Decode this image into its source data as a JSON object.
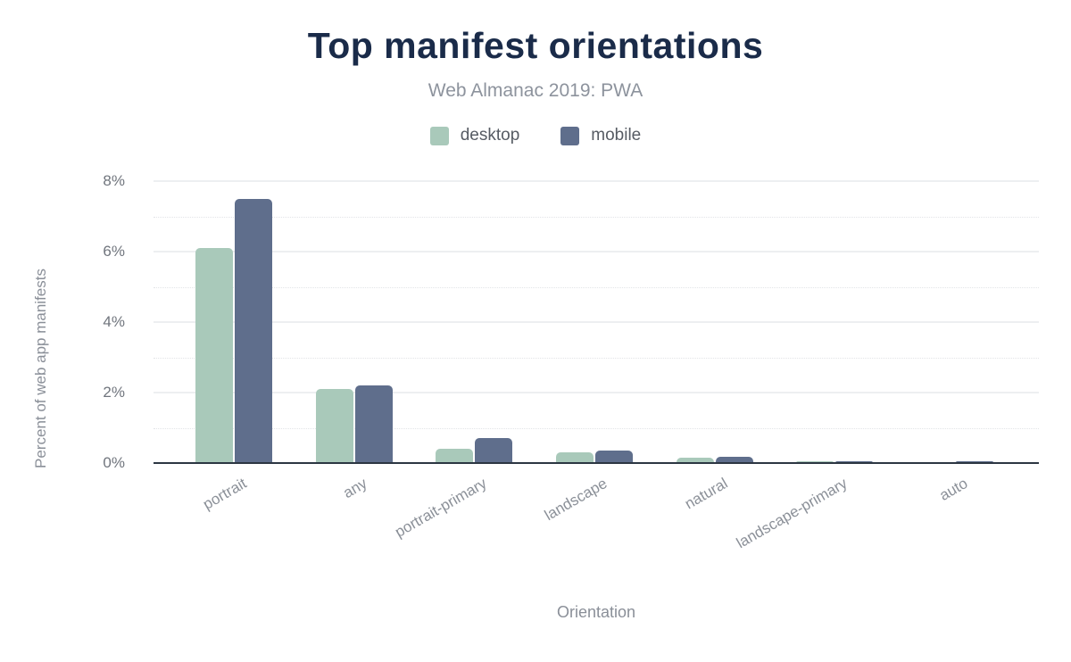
{
  "chart": {
    "title": "Top manifest orientations",
    "subtitle": "Web Almanac 2019: PWA",
    "xlabel": "Orientation",
    "ylabel": "Percent of web app manifests"
  },
  "chart_data": {
    "type": "bar",
    "title": "Top manifest orientations",
    "subtitle": "Web Almanac 2019: PWA",
    "categories": [
      "portrait",
      "any",
      "portrait-primary",
      "landscape",
      "natural",
      "landscape-primary",
      "auto"
    ],
    "series": [
      {
        "name": "desktop",
        "color": "#a9c9ba",
        "values": [
          6.1,
          2.1,
          0.4,
          0.3,
          0.15,
          0.05,
          0.03
        ]
      },
      {
        "name": "mobile",
        "color": "#5f6e8c",
        "values": [
          7.5,
          2.2,
          0.7,
          0.36,
          0.17,
          0.05,
          0.04
        ]
      }
    ],
    "xlabel": "Orientation",
    "ylabel": "Percent of web app manifests",
    "ylim": [
      0,
      8
    ],
    "yticks": [
      {
        "value": 0,
        "label": "0%"
      },
      {
        "value": 2,
        "label": "2%"
      },
      {
        "value": 4,
        "label": "4%"
      },
      {
        "value": 6,
        "label": "6%"
      },
      {
        "value": 8,
        "label": "8%"
      }
    ],
    "minor_gridlines": [
      1,
      3,
      5,
      7
    ],
    "legend_position": "top",
    "grid": "horizontal",
    "colors": {
      "title": "#1a2b49",
      "subtitle": "#8d939d",
      "axis_line": "#2c3642",
      "tick_label": "#70757d",
      "axis_title": "#8a8f98"
    }
  }
}
